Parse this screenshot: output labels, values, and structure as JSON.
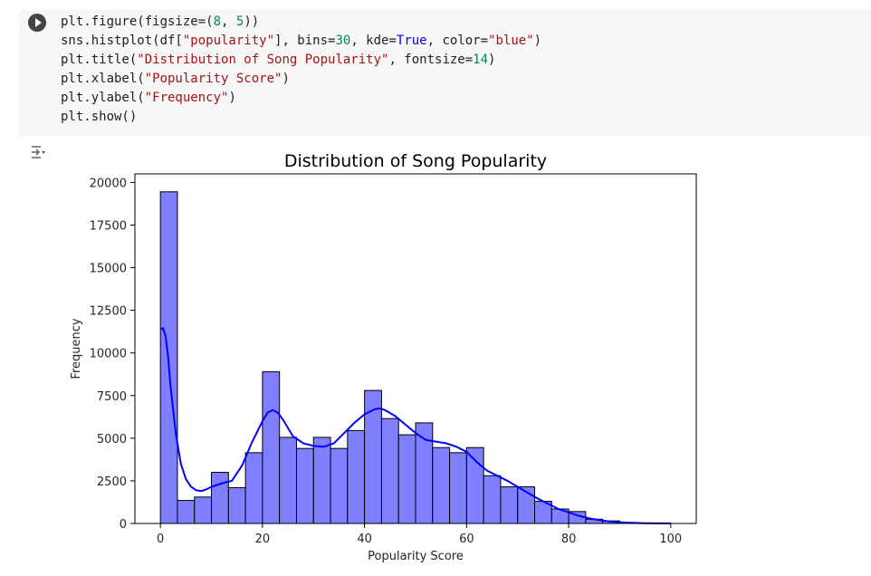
{
  "code_cell": {
    "lines": [
      [
        {
          "t": "plt.figure(figsize=(",
          "c": ""
        },
        {
          "t": "8",
          "c": "n"
        },
        {
          "t": ", ",
          "c": ""
        },
        {
          "t": "5",
          "c": "n"
        },
        {
          "t": "))",
          "c": ""
        }
      ],
      [
        {
          "t": "sns.histplot(df[",
          "c": ""
        },
        {
          "t": "\"popularity\"",
          "c": "s"
        },
        {
          "t": "], bins=",
          "c": ""
        },
        {
          "t": "30",
          "c": "n"
        },
        {
          "t": ", kde=",
          "c": ""
        },
        {
          "t": "True",
          "c": "k"
        },
        {
          "t": ", color=",
          "c": ""
        },
        {
          "t": "\"blue\"",
          "c": "s"
        },
        {
          "t": ")",
          "c": ""
        }
      ],
      [
        {
          "t": "plt.title(",
          "c": ""
        },
        {
          "t": "\"Distribution of Song Popularity\"",
          "c": "s"
        },
        {
          "t": ", fontsize=",
          "c": ""
        },
        {
          "t": "14",
          "c": "n"
        },
        {
          "t": ")",
          "c": ""
        }
      ],
      [
        {
          "t": "plt.xlabel(",
          "c": ""
        },
        {
          "t": "\"Popularity Score\"",
          "c": "s"
        },
        {
          "t": ")",
          "c": ""
        }
      ],
      [
        {
          "t": "plt.ylabel(",
          "c": ""
        },
        {
          "t": "\"Frequency\"",
          "c": "s"
        },
        {
          "t": ")",
          "c": ""
        }
      ],
      [
        {
          "t": "plt.show()",
          "c": ""
        }
      ]
    ],
    "run_icon": "play-icon",
    "output_icon": "output-toggle-icon"
  },
  "chart_data": {
    "type": "bar",
    "title": "Distribution of Song Popularity",
    "xlabel": "Popularity Score",
    "ylabel": "Frequency",
    "xlim": [
      -5,
      105
    ],
    "ylim": [
      0,
      20500
    ],
    "xticks": [
      0,
      20,
      40,
      60,
      80,
      100
    ],
    "yticks": [
      0,
      2500,
      5000,
      7500,
      10000,
      12500,
      15000,
      17500,
      20000
    ],
    "bin_start": 0,
    "bin_width": 3.3333,
    "values": [
      19450,
      1350,
      1550,
      3000,
      2100,
      4150,
      8900,
      5050,
      4400,
      5050,
      4400,
      5450,
      7800,
      6150,
      5200,
      5900,
      4450,
      4150,
      4450,
      2800,
      2150,
      2150,
      1300,
      850,
      700,
      250,
      150,
      60,
      20,
      10
    ],
    "kde": {
      "x": [
        0,
        0.5,
        1,
        1.5,
        2,
        3,
        4,
        5,
        6,
        7,
        8,
        9,
        10,
        12,
        14,
        16,
        18,
        20,
        21,
        22,
        23,
        24,
        26,
        28,
        30,
        32,
        34,
        36,
        38,
        40,
        42,
        43,
        44,
        46,
        48,
        50,
        52,
        54,
        56,
        58,
        60,
        62,
        64,
        66,
        68,
        70,
        72,
        74,
        76,
        78,
        80,
        82,
        84,
        86,
        88,
        90,
        92,
        95,
        100
      ],
      "y": [
        11400,
        11450,
        11000,
        9800,
        8000,
        5300,
        3500,
        2600,
        2150,
        1950,
        1900,
        2000,
        2150,
        2350,
        2500,
        3400,
        4800,
        6000,
        6500,
        6650,
        6500,
        6100,
        5100,
        4700,
        4550,
        4500,
        4700,
        5300,
        5900,
        6400,
        6700,
        6750,
        6650,
        6300,
        5800,
        5300,
        4900,
        4800,
        4700,
        4500,
        4200,
        3600,
        3100,
        2800,
        2500,
        2150,
        1800,
        1450,
        1150,
        850,
        650,
        450,
        300,
        200,
        120,
        70,
        40,
        15,
        5
      ]
    },
    "bar_fill": "#7f7fff",
    "bar_edge": "#000000",
    "kde_color": "#0000ff",
    "grid": false,
    "legend": "none"
  }
}
